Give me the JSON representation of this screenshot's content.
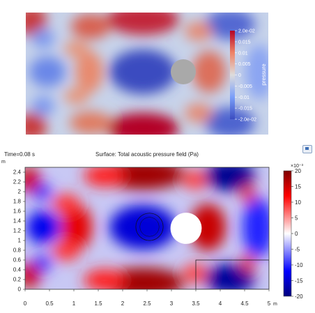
{
  "chart_data": [
    {
      "type": "heatmap",
      "title": "",
      "colormap": "cool-warm (blue-white-red)",
      "colorbar": {
        "label": "pressure",
        "ticks": [
          "2.0e-02",
          "0.015",
          "0.01",
          "0.005",
          "0",
          "-0.005",
          "-0.01",
          "-0.015",
          "-2.0e-02"
        ],
        "range": [
          -0.02,
          0.02
        ]
      },
      "obstacle": "grey circular disk, right of centre"
    },
    {
      "type": "heatmap",
      "time_label": "Time=0.08 s",
      "title": "Surface: Total acoustic pressure field (Pa)",
      "colormap": "blue-white-red (dark blue to dark red)",
      "xlabel": "",
      "ylabel": "",
      "x_unit": "m",
      "y_unit": "m",
      "xlim": [
        0,
        5
      ],
      "ylim": [
        0,
        2.5
      ],
      "x_ticks": [
        "0",
        "0.5",
        "1",
        "1.5",
        "2",
        "2.5",
        "3",
        "3.5",
        "4",
        "4.5",
        "5"
      ],
      "y_ticks": [
        "0",
        "0.2",
        "0.4",
        "0.6",
        "0.8",
        "1",
        "1.2",
        "1.4",
        "1.6",
        "1.8",
        "2",
        "2.2",
        "2.4"
      ],
      "colorbar": {
        "exponent_label": "×10⁻³",
        "ticks": [
          "20",
          "15",
          "10",
          "5",
          "0",
          "-5",
          "-10",
          "-15",
          "-20"
        ],
        "range": [
          -20,
          20
        ]
      },
      "obstacle": {
        "shape": "circle",
        "cx": 3.3,
        "cy": 1.25,
        "r": 0.32
      },
      "outlined_regions": [
        {
          "shape": "circle",
          "cx": 2.55,
          "cy": 1.28,
          "r": 0.28
        },
        {
          "shape": "rectangle",
          "x0": 3.5,
          "x1": 5.0,
          "y0": 0.0,
          "y1": 0.6
        }
      ],
      "fields": [
        {
          "x": 2.5,
          "y": 1.3,
          "value": -20,
          "note": "blue lobe around source"
        },
        {
          "x": 2.35,
          "y": 2.3,
          "value": 18,
          "note": "red top band"
        },
        {
          "x": 2.35,
          "y": 0.25,
          "value": 18,
          "note": "red bottom band"
        },
        {
          "x": 1.0,
          "y": 1.4,
          "value": 16,
          "note": "red chevron"
        },
        {
          "x": 0.5,
          "y": 1.3,
          "value": -18
        },
        {
          "x": 4.3,
          "y": 2.3,
          "value": -20
        },
        {
          "x": 4.3,
          "y": 0.25,
          "value": -20
        },
        {
          "x": 3.8,
          "y": 1.25,
          "value": 14
        },
        {
          "x": 4.6,
          "y": 1.3,
          "value": -14
        }
      ]
    }
  ]
}
